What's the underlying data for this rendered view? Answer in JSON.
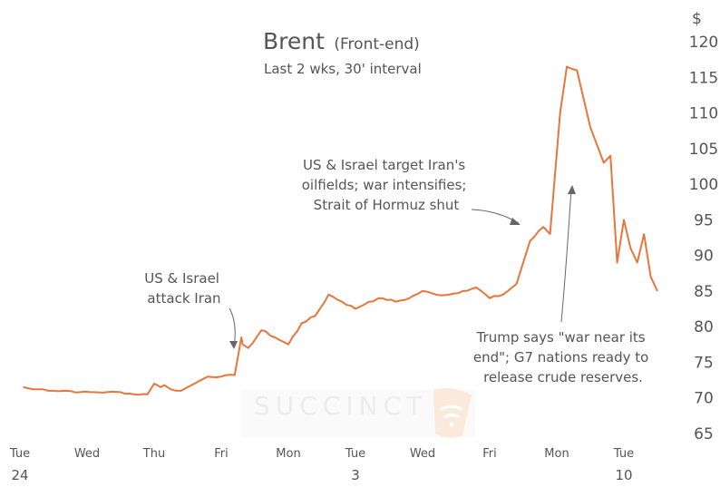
{
  "chart_data": {
    "type": "line",
    "title": "Brent",
    "title_suffix": "(Front-end)",
    "subtitle": "Last 2 wks, 30' interval",
    "ylabel": "$",
    "ylim": [
      65,
      120
    ],
    "yticks": [
      65,
      70,
      75,
      80,
      85,
      90,
      95,
      100,
      105,
      110,
      115,
      120
    ],
    "xlim": [
      0,
      14.5
    ],
    "xticks": [
      {
        "x": 0,
        "label": "Tue",
        "sub": "24"
      },
      {
        "x": 1,
        "label": "Wed",
        "sub": ""
      },
      {
        "x": 2,
        "label": "Thu",
        "sub": ""
      },
      {
        "x": 3,
        "label": "Fri",
        "sub": ""
      },
      {
        "x": 4,
        "label": "Mon",
        "sub": ""
      },
      {
        "x": 5,
        "label": "Tue",
        "sub": "3"
      },
      {
        "x": 6,
        "label": "Wed",
        "sub": ""
      },
      {
        "x": 7,
        "label": "Fri",
        "sub": ""
      },
      {
        "x": 8,
        "label": "Mon",
        "sub": ""
      },
      {
        "x": 9,
        "label": "Tue",
        "sub": "10"
      }
    ],
    "series": [
      {
        "name": "Brent (Front-end)",
        "color": "#e8763a",
        "x": [
          0.05,
          0.2,
          0.35,
          0.5,
          0.7,
          0.9,
          1.1,
          1.3,
          1.5,
          1.7,
          1.9,
          2.0,
          2.1,
          2.15,
          2.25,
          2.4,
          2.5,
          2.6,
          2.8,
          3.0,
          3.2,
          3.3,
          3.32,
          3.4,
          3.6,
          3.8,
          4.0,
          4.2,
          4.4,
          4.6,
          4.8,
          5.0,
          5.2,
          5.4,
          5.6,
          5.8,
          6.0,
          6.2,
          6.4,
          6.6,
          6.8,
          7.0,
          7.2,
          7.4,
          7.6,
          7.8,
          7.9,
          8.05,
          8.15,
          8.3,
          8.5,
          8.7,
          8.8,
          8.9,
          9.0,
          9.1,
          9.2,
          9.3,
          9.4,
          9.5
        ],
        "values": [
          71.5,
          71.2,
          71.2,
          71.0,
          71.0,
          70.8,
          70.8,
          70.8,
          70.8,
          70.5,
          70.5,
          72.0,
          71.5,
          71.8,
          71.2,
          71.0,
          71.5,
          72.0,
          73.0,
          73.0,
          73.2,
          78.5,
          77.5,
          77.0,
          79.5,
          78.5,
          77.5,
          80.5,
          81.5,
          84.5,
          83.5,
          82.5,
          83.5,
          84.0,
          83.5,
          84.0,
          85.0,
          84.5,
          84.5,
          85.0,
          85.5,
          84.0,
          84.5,
          86.0,
          92.0,
          94.0,
          93.0,
          110.0,
          116.5,
          116.0,
          108.0,
          103.0,
          104.0,
          89.0,
          95.0,
          91.0,
          89.0,
          93.0,
          87.0,
          85.0
        ]
      }
    ],
    "annotations": [
      {
        "lines": [
          "US & Israel",
          "attack Iran"
        ]
      },
      {
        "lines": [
          "US & Israel target Iran's",
          "oilfields; war intensifies;",
          "Strait of Hormuz shut"
        ]
      },
      {
        "lines": [
          "Trump says \"war near its",
          "end\"; G7 nations ready to",
          "release crude reserves."
        ]
      }
    ],
    "watermark": "SUCCINCT"
  }
}
